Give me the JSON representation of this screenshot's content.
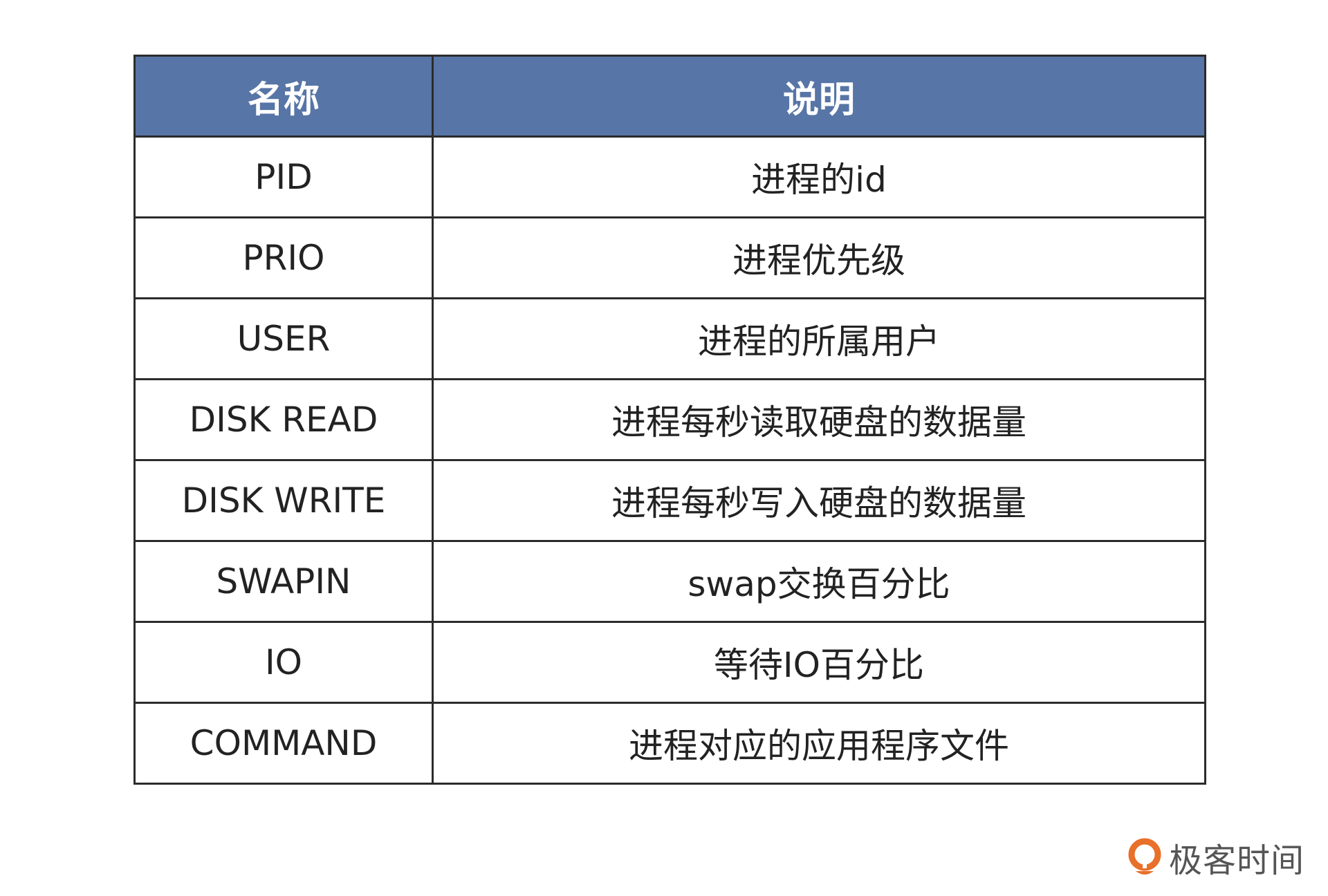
{
  "table": {
    "headers": [
      "名称",
      "说明"
    ],
    "rows": [
      [
        "PID",
        "进程的id"
      ],
      [
        "PRIO",
        "进程优先级"
      ],
      [
        "USER",
        "进程的所属用户"
      ],
      [
        "DISK READ",
        "进程每秒读取硬盘的数据量"
      ],
      [
        "DISK WRITE",
        "进程每秒写入硬盘的数据量"
      ],
      [
        "SWAPIN",
        "swap交换百分比"
      ],
      [
        "IO",
        "等待IO百分比"
      ],
      [
        "COMMAND",
        "进程对应的应用程序文件"
      ]
    ],
    "header_color": "#5775a6"
  },
  "logo": {
    "text": "极客时间",
    "icon": "geektime-logo-icon",
    "color": "#e8702a"
  }
}
